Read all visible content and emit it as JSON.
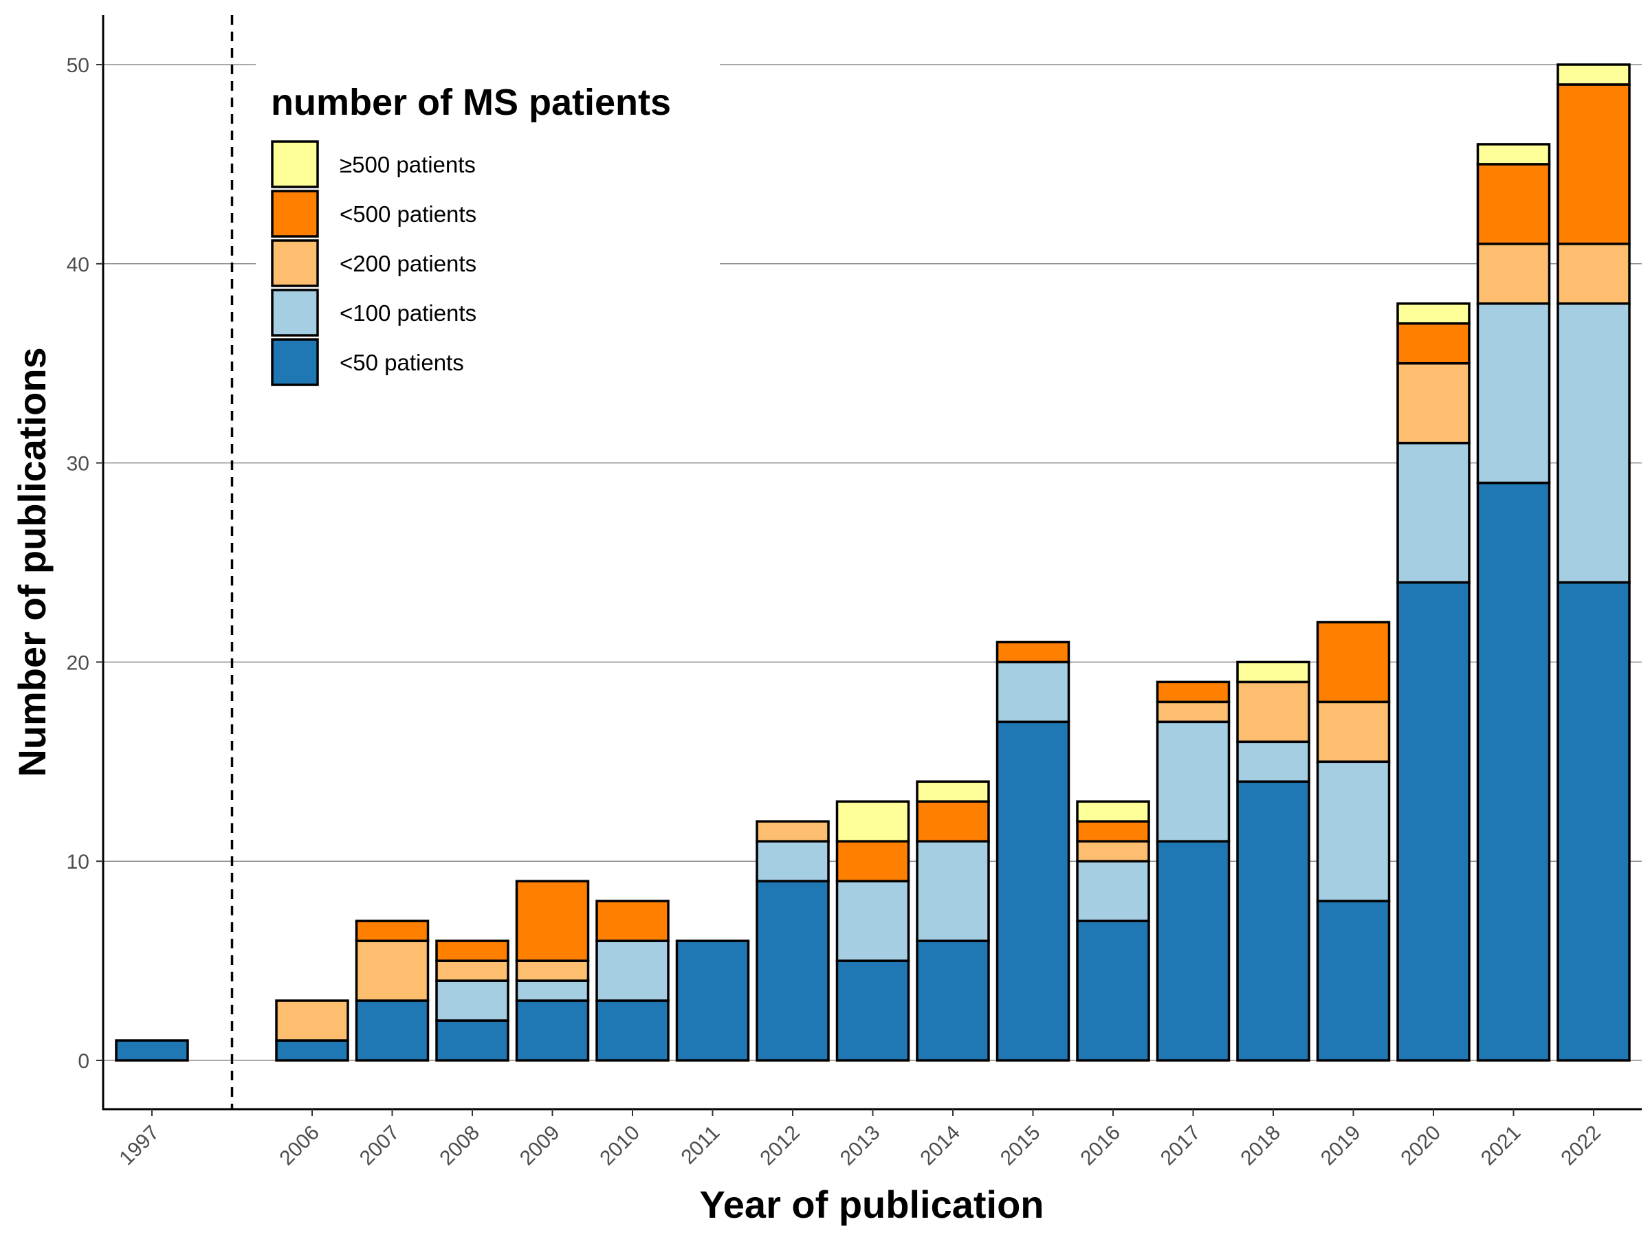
{
  "chart_data": {
    "type": "bar",
    "stacked": true,
    "categories": [
      "1997",
      "2006",
      "2007",
      "2008",
      "2009",
      "2010",
      "2011",
      "2012",
      "2013",
      "2014",
      "2015",
      "2016",
      "2017",
      "2018",
      "2019",
      "2020",
      "2021",
      "2022"
    ],
    "xlabel": "Year of publication",
    "ylabel": "Number of publications",
    "ylim": [
      0,
      52
    ],
    "yticks": [
      0,
      10,
      20,
      30,
      40,
      50
    ],
    "grid": "horizontal",
    "legend_title": "number of MS patients",
    "legend_position": "top-left",
    "separator": "dashed vertical line between 1997 and 2006",
    "series": [
      {
        "name": "<50 patients",
        "color": "#1f78b4",
        "values": [
          1,
          1,
          3,
          2,
          3,
          3,
          6,
          9,
          5,
          6,
          17,
          7,
          11,
          14,
          8,
          24,
          29,
          24
        ]
      },
      {
        "name": "<100 patients",
        "color": "#a6cee3",
        "values": [
          0,
          0,
          0,
          2,
          1,
          3,
          0,
          2,
          4,
          5,
          3,
          3,
          6,
          2,
          7,
          7,
          9,
          14
        ]
      },
      {
        "name": "<200 patients",
        "color": "#fdbf6f",
        "values": [
          0,
          2,
          3,
          1,
          1,
          0,
          0,
          1,
          0,
          0,
          0,
          1,
          1,
          3,
          3,
          4,
          3,
          3
        ]
      },
      {
        "name": "<500 patients",
        "color": "#ff7f00",
        "values": [
          0,
          0,
          1,
          1,
          4,
          2,
          0,
          0,
          2,
          2,
          1,
          1,
          1,
          0,
          4,
          2,
          4,
          8
        ]
      },
      {
        "name": "≥500 patients",
        "color": "#ffff99",
        "values": [
          0,
          0,
          0,
          0,
          0,
          0,
          0,
          0,
          2,
          1,
          0,
          1,
          0,
          1,
          0,
          1,
          1,
          1
        ]
      }
    ],
    "legend_order": [
      "≥500 patients",
      "<500 patients",
      "<200 patients",
      "<100 patients",
      "<50 patients"
    ]
  }
}
